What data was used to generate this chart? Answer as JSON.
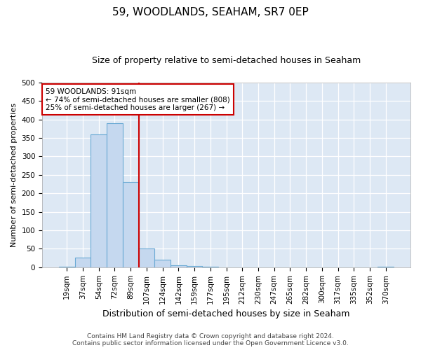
{
  "title": "59, WOODLANDS, SEAHAM, SR7 0EP",
  "subtitle": "Size of property relative to semi-detached houses in Seaham",
  "xlabel": "Distribution of semi-detached houses by size in Seaham",
  "ylabel": "Number of semi-detached properties",
  "categories": [
    "19sqm",
    "37sqm",
    "54sqm",
    "72sqm",
    "89sqm",
    "107sqm",
    "124sqm",
    "142sqm",
    "159sqm",
    "177sqm",
    "195sqm",
    "212sqm",
    "230sqm",
    "247sqm",
    "265sqm",
    "282sqm",
    "300sqm",
    "317sqm",
    "335sqm",
    "352sqm",
    "370sqm"
  ],
  "values": [
    2,
    27,
    360,
    390,
    230,
    50,
    20,
    5,
    3,
    1,
    0,
    0,
    0,
    0,
    0,
    0,
    0,
    0,
    0,
    0,
    1
  ],
  "bar_color": "#c5d8ef",
  "bar_edge_color": "#6aaad4",
  "vline_bin_index": 4,
  "annotation_title": "59 WOODLANDS: 91sqm",
  "annotation_line1": "← 74% of semi-detached houses are smaller (808)",
  "annotation_line2": "25% of semi-detached houses are larger (267) →",
  "annotation_box_color": "#ffffff",
  "annotation_box_edge": "#cc0000",
  "vline_color": "#cc0000",
  "background_color": "#dde8f4",
  "ylim": [
    0,
    500
  ],
  "yticks": [
    0,
    50,
    100,
    150,
    200,
    250,
    300,
    350,
    400,
    450,
    500
  ],
  "footer_line1": "Contains HM Land Registry data © Crown copyright and database right 2024.",
  "footer_line2": "Contains public sector information licensed under the Open Government Licence v3.0.",
  "title_fontsize": 11,
  "subtitle_fontsize": 9,
  "ylabel_fontsize": 8,
  "xlabel_fontsize": 9,
  "tick_fontsize": 7.5,
  "footer_fontsize": 6.5
}
